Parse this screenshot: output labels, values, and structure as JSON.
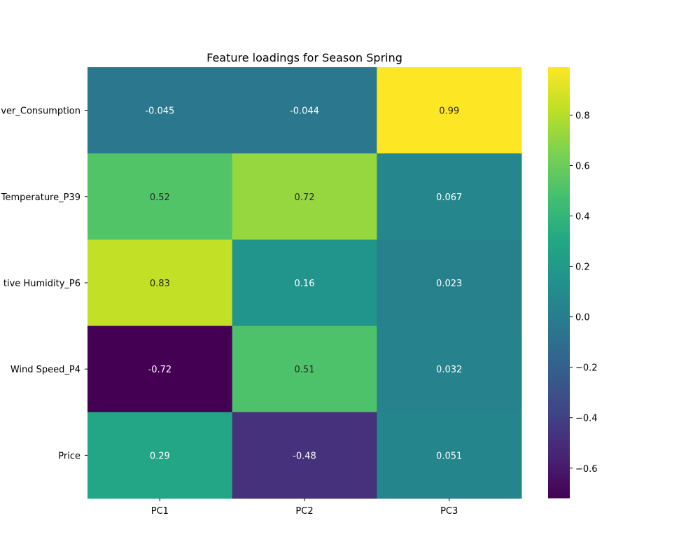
{
  "chart_data": {
    "type": "heatmap",
    "title": "Feature loadings for Season Spring",
    "columns": [
      "PC1",
      "PC2",
      "PC3"
    ],
    "rows": [
      "ver_Consumption",
      "Temperature_P39",
      "tive Humidity_P6",
      "Wind Speed_P4",
      "Price"
    ],
    "values": [
      [
        -0.045,
        -0.044,
        0.99
      ],
      [
        0.52,
        0.72,
        0.067
      ],
      [
        0.83,
        0.16,
        0.023
      ],
      [
        -0.72,
        0.51,
        0.032
      ],
      [
        0.29,
        -0.48,
        0.051
      ]
    ],
    "cell_labels": [
      [
        "-0.045",
        "-0.044",
        "0.99"
      ],
      [
        "0.52",
        "0.72",
        "0.067"
      ],
      [
        "0.83",
        "0.16",
        "0.023"
      ],
      [
        "-0.72",
        "0.51",
        "0.032"
      ],
      [
        "0.29",
        "-0.48",
        "0.051"
      ]
    ],
    "colormap": "viridis",
    "vmin": -0.72,
    "vmax": 0.99,
    "colorbar_ticks": [
      -0.6,
      -0.4,
      -0.2,
      0.0,
      0.2,
      0.4,
      0.6,
      0.8
    ],
    "colorbar_tick_labels": [
      "−0.6",
      "−0.4",
      "−0.2",
      "0.0",
      "0.2",
      "0.4",
      "0.6",
      "0.8"
    ]
  }
}
